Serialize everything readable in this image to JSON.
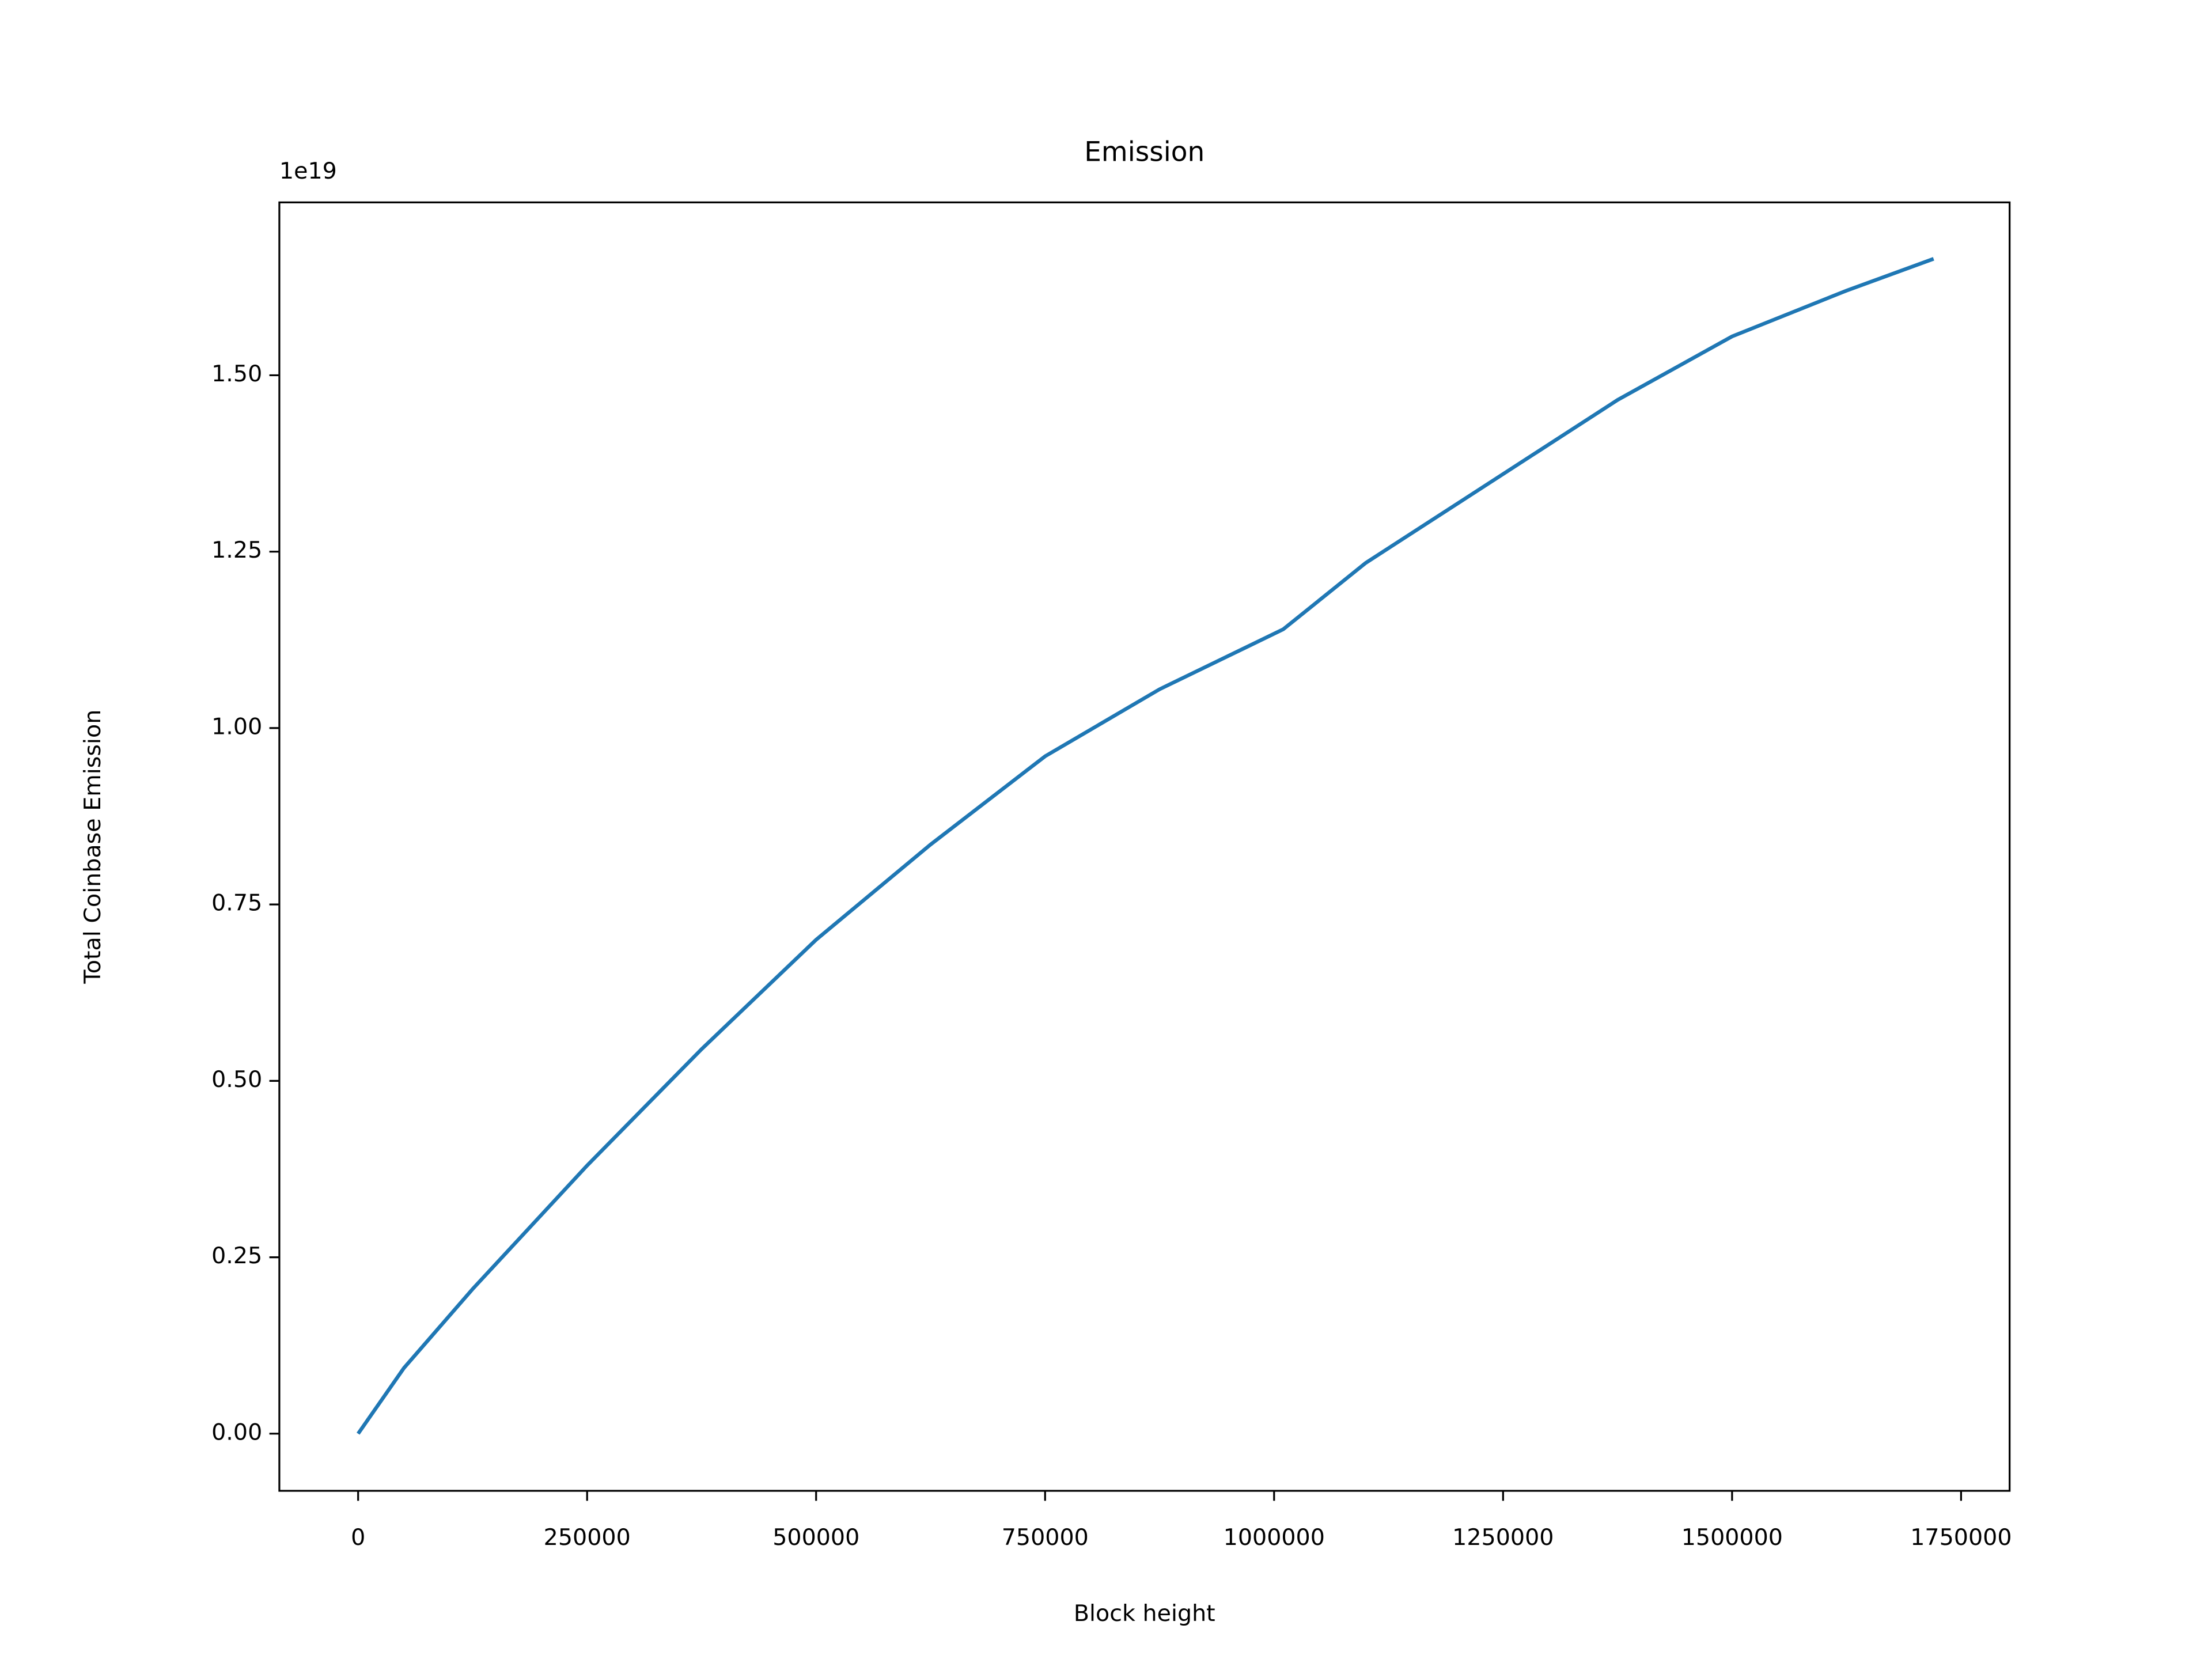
{
  "chart_data": {
    "type": "line",
    "title": "Emission",
    "x_label": "Block height",
    "y_label": "Total Coinbase Emission",
    "y_offset_label": "1e19",
    "x": [
      0,
      50000,
      125000,
      250000,
      375000,
      500000,
      625000,
      750000,
      875000,
      1010000,
      1100000,
      1250000,
      1375000,
      1500000,
      1625000,
      1720000
    ],
    "series": [
      {
        "name": "Total Coinbase Emission",
        "color": "#1f77b4",
        "values": [
          0,
          0.093,
          0.205,
          0.38,
          0.545,
          0.7,
          0.835,
          0.96,
          1.055,
          1.14,
          1.234,
          1.36,
          1.465,
          1.555,
          1.62,
          1.665
        ]
      }
    ],
    "xlim": [
      -86000,
      1803000
    ],
    "ylim": [
      -0.081,
      1.745
    ],
    "xticks": [
      0,
      250000,
      500000,
      750000,
      1000000,
      1250000,
      1500000,
      1750000
    ],
    "yticks": [
      {
        "value": 0,
        "label": "0.00"
      },
      {
        "value": 0.25,
        "label": "0.25"
      },
      {
        "value": 0.5,
        "label": "0.50"
      },
      {
        "value": 0.75,
        "label": "0.75"
      },
      {
        "value": 1,
        "label": "1.00"
      },
      {
        "value": 1.25,
        "label": "1.25"
      },
      {
        "value": 1.5,
        "label": "1.50"
      }
    ],
    "grid": false
  }
}
